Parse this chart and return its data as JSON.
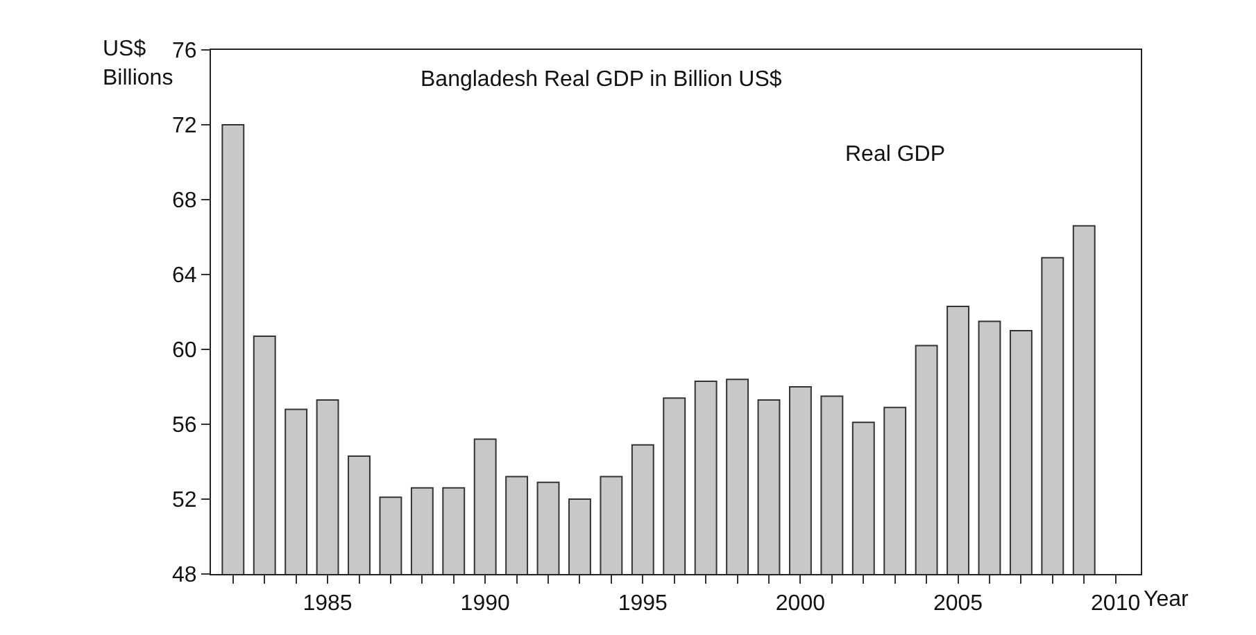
{
  "chart_data": {
    "type": "bar",
    "title": "Bangladesh Real GDP in Billion US$",
    "ylabel": "US$ Billions",
    "xlabel": "Year",
    "x": [
      1982,
      1983,
      1984,
      1985,
      1986,
      1987,
      1988,
      1989,
      1990,
      1991,
      1992,
      1993,
      1994,
      1995,
      1996,
      1997,
      1998,
      1999,
      2000,
      2001,
      2002,
      2003,
      2004,
      2005,
      2006,
      2007,
      2008,
      2009
    ],
    "series": [
      {
        "name": "Real GDP",
        "color": "#c8c8c8",
        "values": [
          72.0,
          60.7,
          56.8,
          57.3,
          54.3,
          52.1,
          52.6,
          52.6,
          55.2,
          53.2,
          52.9,
          52.0,
          53.2,
          54.9,
          57.4,
          58.3,
          58.4,
          57.3,
          58.0,
          57.5,
          56.1,
          56.9,
          60.2,
          62.3,
          61.5,
          61.0,
          64.9,
          66.6
        ]
      }
    ],
    "xlim": [
      1981.3,
      2010.8
    ],
    "xticks": [
      {
        "value": 1982,
        "label": null
      },
      {
        "value": 1983,
        "label": null
      },
      {
        "value": 1984,
        "label": null
      },
      1985,
      {
        "value": 1986,
        "label": null
      },
      {
        "value": 1987,
        "label": null
      },
      {
        "value": 1988,
        "label": null
      },
      {
        "value": 1989,
        "label": null
      },
      1990,
      {
        "value": 1991,
        "label": null
      },
      {
        "value": 1992,
        "label": null
      },
      {
        "value": 1993,
        "label": null
      },
      {
        "value": 1994,
        "label": null
      },
      1995,
      {
        "value": 1996,
        "label": null
      },
      {
        "value": 1997,
        "label": null
      },
      {
        "value": 1998,
        "label": null
      },
      {
        "value": 1999,
        "label": null
      },
      2000,
      {
        "value": 2001,
        "label": null
      },
      {
        "value": 2002,
        "label": null
      },
      {
        "value": 2003,
        "label": null
      },
      {
        "value": 2004,
        "label": null
      },
      2005,
      {
        "value": 2006,
        "label": null
      },
      {
        "value": 2007,
        "label": null
      },
      {
        "value": 2008,
        "label": null
      },
      {
        "value": 2009,
        "label": null
      },
      2010
    ],
    "ylim": [
      48,
      76
    ],
    "yticks": [
      48,
      52,
      56,
      60,
      64,
      68,
      72,
      76
    ],
    "grid": false,
    "legend": false
  }
}
